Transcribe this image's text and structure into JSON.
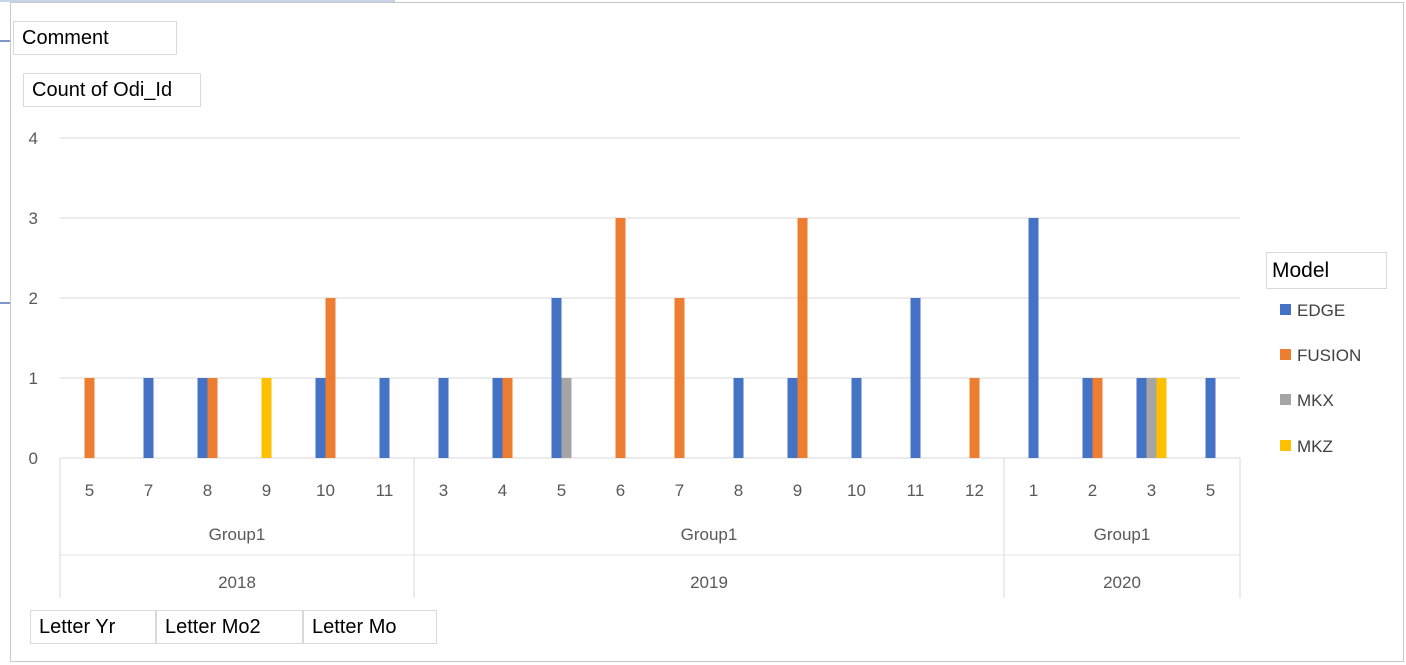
{
  "chart_data": {
    "type": "bar",
    "title": "",
    "ylabel": "",
    "xlabel": "",
    "ylim": [
      0,
      4
    ],
    "yticks": [
      0,
      1,
      2,
      3,
      4
    ],
    "grid": true,
    "legend_position": "right",
    "categories": [
      {
        "year": "2018",
        "group": "Group1",
        "month": "5"
      },
      {
        "year": "2018",
        "group": "Group1",
        "month": "7"
      },
      {
        "year": "2018",
        "group": "Group1",
        "month": "8"
      },
      {
        "year": "2018",
        "group": "Group1",
        "month": "9"
      },
      {
        "year": "2018",
        "group": "Group1",
        "month": "10"
      },
      {
        "year": "2018",
        "group": "Group1",
        "month": "11"
      },
      {
        "year": "2019",
        "group": "Group1",
        "month": "3"
      },
      {
        "year": "2019",
        "group": "Group1",
        "month": "4"
      },
      {
        "year": "2019",
        "group": "Group1",
        "month": "5"
      },
      {
        "year": "2019",
        "group": "Group1",
        "month": "6"
      },
      {
        "year": "2019",
        "group": "Group1",
        "month": "7"
      },
      {
        "year": "2019",
        "group": "Group1",
        "month": "8"
      },
      {
        "year": "2019",
        "group": "Group1",
        "month": "9"
      },
      {
        "year": "2019",
        "group": "Group1",
        "month": "10"
      },
      {
        "year": "2019",
        "group": "Group1",
        "month": "11"
      },
      {
        "year": "2019",
        "group": "Group1",
        "month": "12"
      },
      {
        "year": "2020",
        "group": "Group1",
        "month": "1"
      },
      {
        "year": "2020",
        "group": "Group1",
        "month": "2"
      },
      {
        "year": "2020",
        "group": "Group1",
        "month": "3"
      },
      {
        "year": "2020",
        "group": "Group1",
        "month": "5"
      }
    ],
    "groups": [
      {
        "year": "2018",
        "group": "Group1",
        "start": 0,
        "count": 6
      },
      {
        "year": "2019",
        "group": "Group1",
        "start": 6,
        "count": 10
      },
      {
        "year": "2020",
        "group": "Group1",
        "start": 16,
        "count": 4
      }
    ],
    "series": [
      {
        "name": "EDGE",
        "color": "#4472C4",
        "values": [
          0,
          1,
          1,
          0,
          1,
          1,
          1,
          1,
          2,
          0,
          0,
          1,
          1,
          1,
          2,
          0,
          3,
          1,
          1,
          1
        ]
      },
      {
        "name": "FUSION",
        "color": "#ED7D31",
        "values": [
          1,
          0,
          1,
          0,
          2,
          0,
          0,
          1,
          0,
          3,
          2,
          0,
          3,
          0,
          0,
          1,
          0,
          1,
          0,
          0
        ]
      },
      {
        "name": "MKX",
        "color": "#A5A5A5",
        "values": [
          0,
          0,
          0,
          0,
          0,
          0,
          0,
          0,
          1,
          0,
          0,
          0,
          0,
          0,
          0,
          0,
          0,
          0,
          1,
          0
        ]
      },
      {
        "name": "MKZ",
        "color": "#FFC000",
        "values": [
          0,
          0,
          0,
          1,
          0,
          0,
          0,
          0,
          0,
          0,
          0,
          0,
          0,
          0,
          0,
          0,
          0,
          0,
          1,
          0
        ]
      }
    ]
  },
  "pivot_fields": {
    "filter_field": "Comment",
    "value_field": "Count of Odi_Id",
    "legend_title": "Model",
    "axis_fields": [
      "Letter Yr",
      "Letter Mo2",
      "Letter Mo"
    ]
  }
}
